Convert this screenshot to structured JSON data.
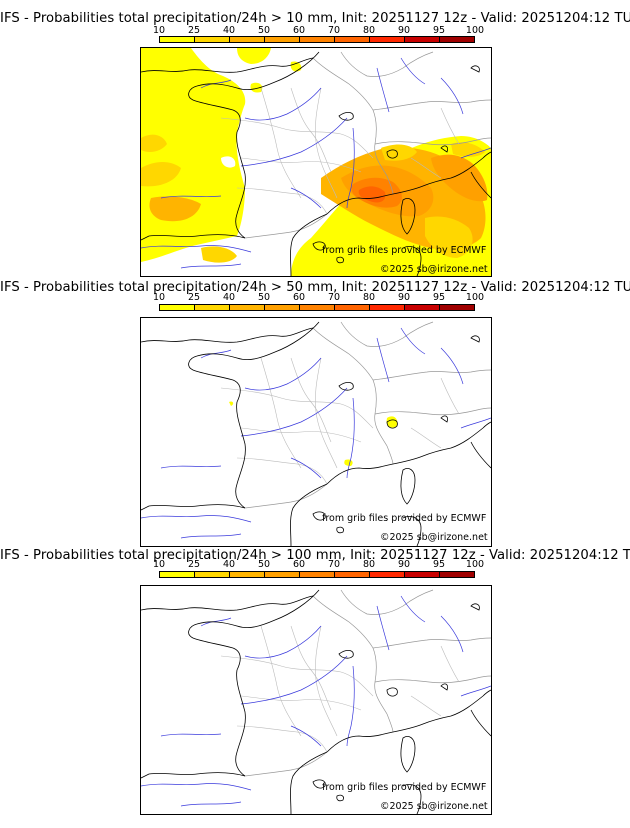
{
  "colorbar": {
    "ticks": [
      "10",
      "25",
      "40",
      "50",
      "60",
      "70",
      "80",
      "90",
      "95",
      "100"
    ],
    "colors": [
      "#ffff00",
      "#ffd700",
      "#ffb400",
      "#ffa000",
      "#ff8200",
      "#ff6400",
      "#ff2800",
      "#c80000",
      "#a00000",
      "#640000"
    ]
  },
  "panels": [
    {
      "title": "IFS - Probabilities total precipitation/24h > 10 mm, Init: 20251127 12z - Valid: 20251204:12 TU",
      "credit_source": "from grib files provided by ECMWF",
      "credit_copy": "©2025 sb@irizone.net"
    },
    {
      "title": "IFS - Probabilities total precipitation/24h > 50 mm, Init: 20251127 12z - Valid: 20251204:12 TU",
      "credit_source": "from grib files provided by ECMWF",
      "credit_copy": "©2025 sb@irizone.net"
    },
    {
      "title": "IFS - Probabilities total precipitation/24h > 100 mm, Init: 20251127 12z - Valid: 20251204:12 TU",
      "credit_source": "from grib files provided by ECMWF",
      "credit_copy": "©2025 sb@irizone.net"
    }
  ]
}
